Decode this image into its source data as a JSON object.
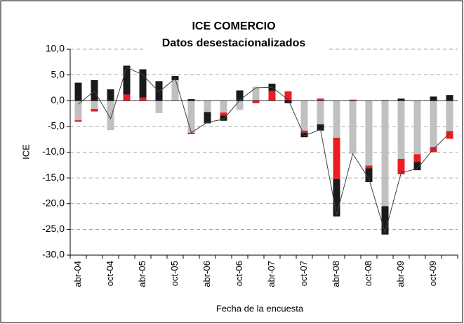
{
  "chart_data": {
    "type": "bar",
    "stacked": true,
    "title": "ICE COMERCIO",
    "subtitle": "Datos desestacionalizados",
    "y_label": "ICE",
    "x_label": "Fecha de la encuesta",
    "categories": [
      "abr-04",
      null,
      "oct-04",
      null,
      "abr-05",
      null,
      "oct-05",
      null,
      "abr-06",
      null,
      "oct-06",
      null,
      "abr-07",
      null,
      "oct-07",
      null,
      "abr-08",
      null,
      "oct-08",
      null,
      "abr-09",
      null,
      "oct-09",
      null
    ],
    "series": [
      {
        "type": "bar",
        "color": "#c0c0c0",
        "values": [
          -3.8,
          -1.6,
          -5.7,
          0,
          0,
          -2.4,
          4.0,
          -6.2,
          -2.2,
          -2.3,
          -1.8,
          2.7,
          0,
          0,
          -5.8,
          -4.6,
          -7.2,
          -10.3,
          -12.6,
          -20.5,
          -11.3,
          -10.4,
          -9.0,
          -5.9
        ]
      },
      {
        "type": "bar",
        "color": "#ed1c24",
        "values": [
          -0.3,
          -0.5,
          0,
          1.2,
          0.6,
          0,
          0,
          -0.3,
          0,
          -0.6,
          0,
          -0.5,
          1.9,
          1.8,
          -0.4,
          0.4,
          -8.0,
          0.2,
          -0.5,
          0.1,
          -3.0,
          -1.5,
          -1.0,
          -1.5
        ]
      },
      {
        "type": "bar",
        "color": "#1a1a1a",
        "values": [
          3.5,
          4.0,
          2.2,
          5.6,
          5.5,
          3.8,
          0.8,
          0.3,
          -2.2,
          -1.0,
          2.0,
          0,
          1.4,
          -0.5,
          -0.9,
          -1.2,
          -7.3,
          0,
          -2.7,
          -5.5,
          0.4,
          -1.6,
          0.8,
          1.1
        ]
      },
      {
        "type": "line",
        "color": "#404040",
        "values": [
          -0.7,
          1.9,
          -3.5,
          6.5,
          5.0,
          1.7,
          4.3,
          -6.2,
          -4.2,
          -3.6,
          0.1,
          2.5,
          2.6,
          0.2,
          -6.8,
          -5.6,
          -22.2,
          -10.3,
          -15.2,
          -25.6,
          -14.0,
          -13.2,
          -9.4,
          -6.3
        ]
      }
    ],
    "ylim": [
      -30,
      10
    ],
    "yticks": [
      {
        "value": -30,
        "label": "-30,0"
      },
      {
        "value": -25,
        "label": "-25,0"
      },
      {
        "value": -20,
        "label": "-20,0"
      },
      {
        "value": -15,
        "label": "-15,0"
      },
      {
        "value": -10,
        "label": "-10,0"
      },
      {
        "value": -5,
        "label": "-5,0"
      },
      {
        "value": 0,
        "label": "0,0"
      },
      {
        "value": 5,
        "label": "5,0"
      },
      {
        "value": 10,
        "label": "10,0"
      }
    ],
    "grid": true
  }
}
